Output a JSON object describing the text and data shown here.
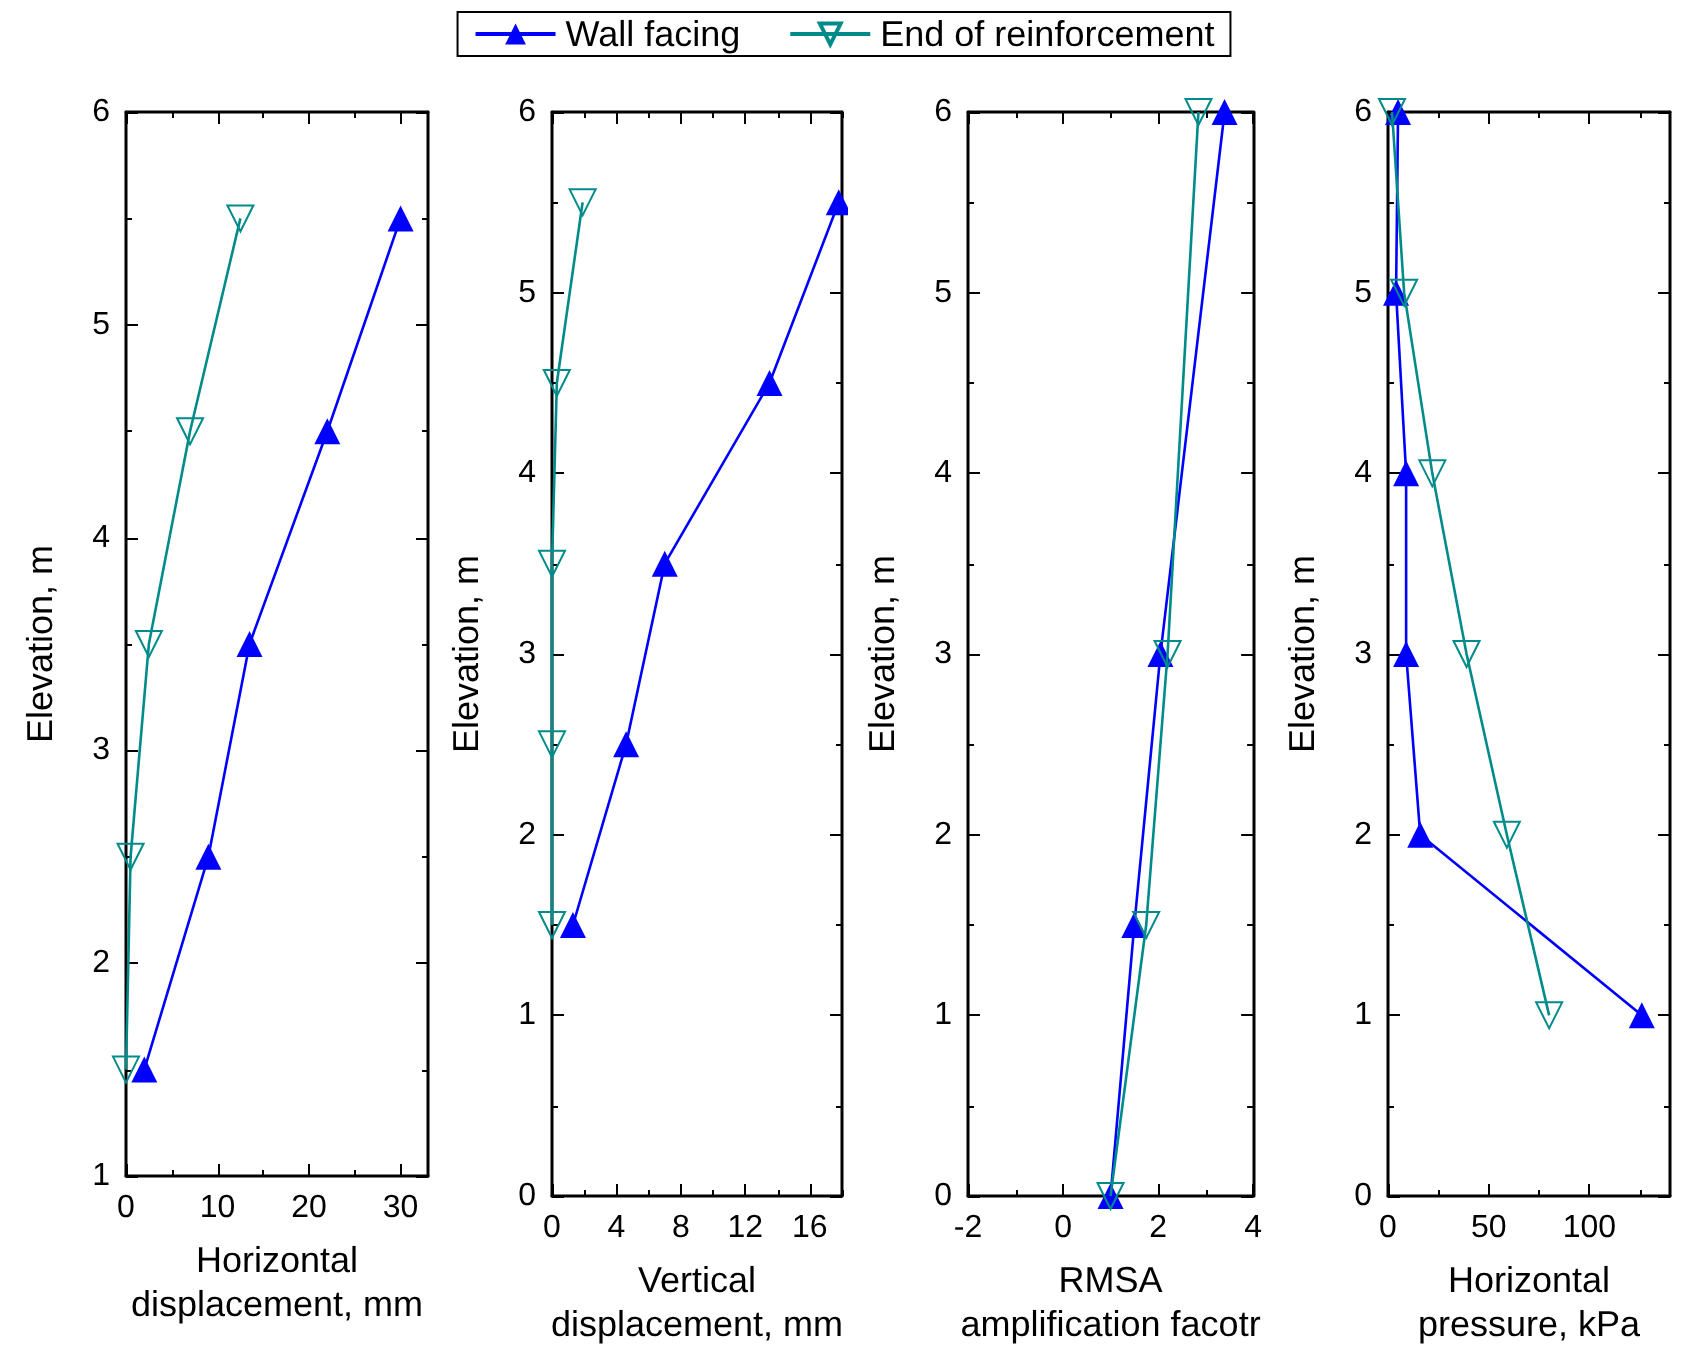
{
  "chart_data": [
    {
      "type": "line",
      "xlabel": "Horizontal displacement, mm",
      "ylabel": "Elevation, m",
      "xlim": [
        0,
        33
      ],
      "xticks": [
        0,
        10,
        20,
        30
      ],
      "ylim": [
        1,
        6
      ],
      "yticks": [
        1,
        2,
        3,
        4,
        5,
        6
      ],
      "legend": "top",
      "grid": false,
      "series": [
        {
          "name": "Wall facing",
          "color": "#0000ff",
          "marker": "triangle",
          "x": [
            2,
            9,
            13.5,
            22,
            30
          ],
          "values": [
            1.5,
            2.5,
            3.5,
            4.5,
            5.5
          ]
        },
        {
          "name": "End of reinforcement",
          "color": "#008b8b",
          "marker": "triangle",
          "x": [
            0,
            0.5,
            2.5,
            7,
            12.5
          ],
          "values": [
            1.5,
            2.5,
            3.5,
            4.5,
            5.5
          ]
        }
      ]
    },
    {
      "type": "line",
      "xlabel": "Vertical displacement, mm",
      "ylabel": "Elevation, m",
      "xlim": [
        0,
        18
      ],
      "xticks": [
        0,
        4,
        8,
        12,
        16
      ],
      "ylim": [
        0,
        6
      ],
      "yticks": [
        0,
        1,
        2,
        3,
        4,
        5,
        6
      ],
      "grid": false,
      "series": [
        {
          "color": "#0000ff",
          "marker": "triangle",
          "x": [
            1.3,
            4.6,
            7,
            13.5,
            17.8
          ],
          "values": [
            1.5,
            2.5,
            3.5,
            4.5,
            5.5
          ]
        },
        {
          "color": "#008b8b",
          "marker": "triangle",
          "x": [
            0,
            0,
            0,
            0.3,
            1.9
          ],
          "values": [
            1.5,
            2.5,
            3.5,
            4.5,
            5.5
          ]
        }
      ]
    },
    {
      "type": "line",
      "xlabel": "RMSA amplification facotr",
      "ylabel": "Elevation, m",
      "xlim": [
        -2,
        4
      ],
      "xticks": [
        -2,
        0,
        2,
        4
      ],
      "ylim": [
        0,
        6
      ],
      "yticks": [
        0,
        1,
        2,
        3,
        4,
        5,
        6
      ],
      "grid": false,
      "series": [
        {
          "color": "#0000ff",
          "marker": "triangle",
          "x": [
            1,
            1.5,
            2.05,
            3.4
          ],
          "values": [
            0,
            1.5,
            3,
            6
          ]
        },
        {
          "color": "#008b8b",
          "marker": "triangle",
          "x": [
            1,
            1.75,
            2.2,
            2.85
          ],
          "values": [
            0,
            1.5,
            3,
            6
          ]
        }
      ]
    },
    {
      "type": "line",
      "xlabel": "Horizontal pressure, kPa",
      "ylabel": "Elevation, m",
      "xlim": [
        0,
        140
      ],
      "xticks": [
        0,
        50,
        100
      ],
      "ylim": [
        0,
        6
      ],
      "yticks": [
        0,
        1,
        2,
        3,
        4,
        5,
        6
      ],
      "grid": false,
      "series": [
        {
          "color": "#0000ff",
          "marker": "triangle",
          "x": [
            5,
            4,
            9,
            9,
            16,
            126
          ],
          "values": [
            6,
            5,
            4,
            3,
            2,
            1
          ]
        },
        {
          "color": "#008b8b",
          "marker": "triangle",
          "x": [
            2,
            8,
            22,
            39,
            59,
            80
          ],
          "values": [
            6,
            5,
            4,
            3,
            2,
            1
          ]
        }
      ]
    }
  ]
}
